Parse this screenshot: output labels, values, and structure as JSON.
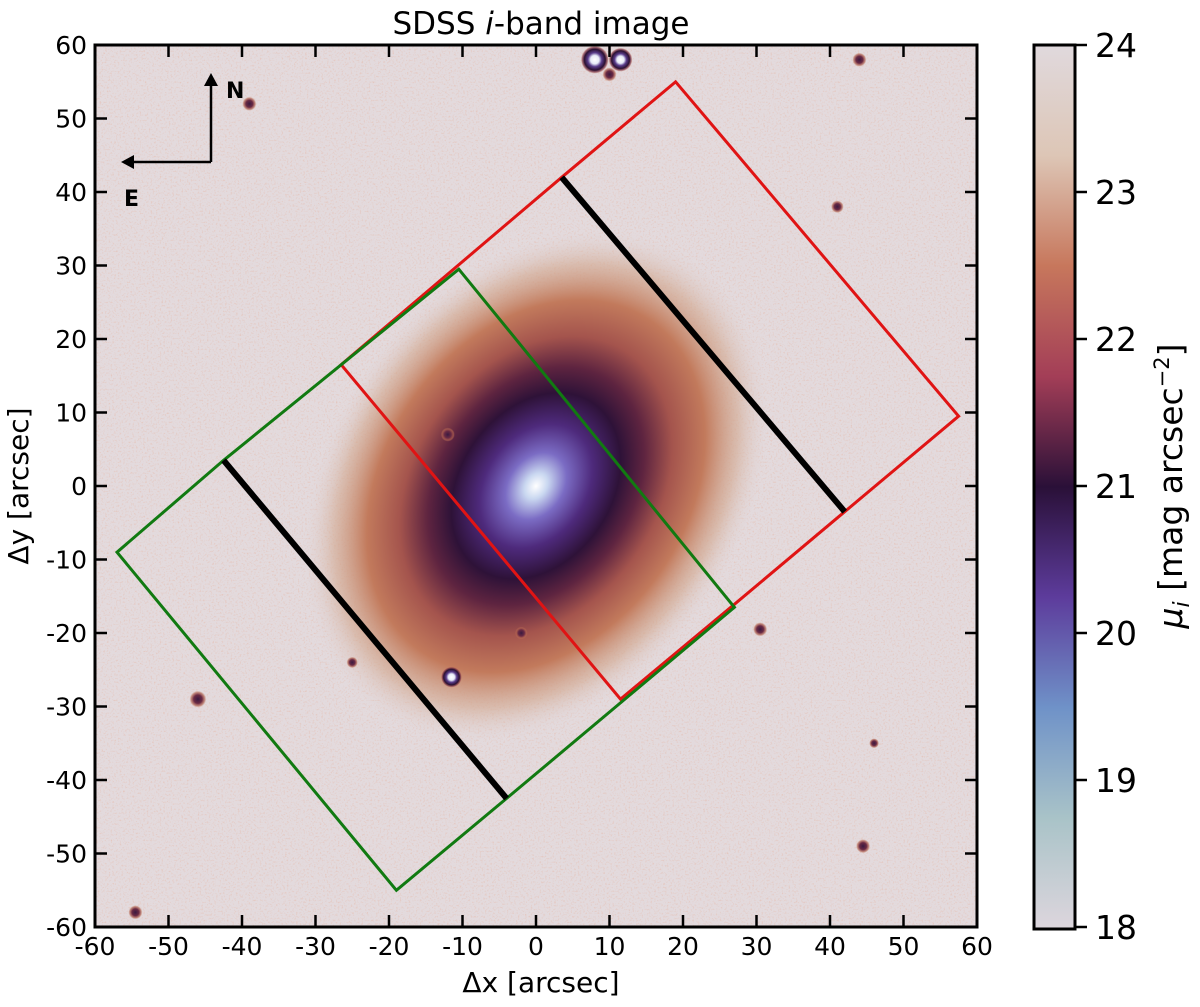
{
  "chart_data": {
    "type": "heatmap",
    "title": "SDSS i-band image",
    "title_parts": [
      "SDSS ",
      "i",
      "-band image"
    ],
    "xlabel": "Δx [arcsec]",
    "ylabel": "Δy [arcsec]",
    "xlim": [
      -60,
      60
    ],
    "ylim": [
      -60,
      60
    ],
    "xticks": [
      -60,
      -50,
      -40,
      -30,
      -20,
      -10,
      0,
      10,
      20,
      30,
      40,
      50,
      60
    ],
    "yticks": [
      -60,
      -50,
      -40,
      -30,
      -20,
      -10,
      0,
      10,
      20,
      30,
      40,
      50,
      60
    ],
    "colorbar": {
      "label_parts": [
        "μ",
        "i",
        " [mag arcsec",
        "−2",
        "]"
      ],
      "range": [
        18,
        24
      ],
      "ticks": [
        18,
        19,
        20,
        21,
        22,
        23,
        24
      ],
      "colormap": [
        "#ddd6dd",
        "#a9c3c8",
        "#6f92c8",
        "#5d3c9c",
        "#2a1038",
        "#a33e57",
        "#c7775c",
        "#ddc6b6",
        "#e0d9dd"
      ]
    },
    "background_color": "#e3dadd",
    "compass": {
      "north": "N",
      "east": "E"
    },
    "galaxy": {
      "center": [
        0,
        0
      ],
      "axis_ratio": 0.75,
      "position_angle_deg": 35
    },
    "stars": [
      {
        "x": 8,
        "y": 58,
        "size": 2.0
      },
      {
        "x": 11.5,
        "y": 58,
        "size": 1.7
      },
      {
        "x": 10,
        "y": 56,
        "size": 1.0
      },
      {
        "x": 44,
        "y": 58,
        "size": 1.0
      },
      {
        "x": -39,
        "y": 52,
        "size": 1.0
      },
      {
        "x": 41,
        "y": 38,
        "size": 0.9
      },
      {
        "x": -12,
        "y": 7,
        "size": 1.0
      },
      {
        "x": -2,
        "y": -20,
        "size": 0.9
      },
      {
        "x": 30.5,
        "y": -19.5,
        "size": 1.0
      },
      {
        "x": -11.5,
        "y": -26,
        "size": 1.5
      },
      {
        "x": -46,
        "y": -29,
        "size": 1.2
      },
      {
        "x": -25,
        "y": -24,
        "size": 0.8
      },
      {
        "x": 44.5,
        "y": -49,
        "size": 1.0
      },
      {
        "x": -54.5,
        "y": -58,
        "size": 1.0
      },
      {
        "x": 46,
        "y": -35,
        "size": 0.7
      }
    ],
    "polygons": [
      {
        "color": "#e01414",
        "width": 3,
        "points": [
          [
            -26.5,
            16.5
          ],
          [
            3.5,
            42
          ],
          [
            19,
            55
          ],
          [
            57.5,
            9.5
          ],
          [
            42,
            -3.5
          ],
          [
            26.5,
            -16.5
          ],
          [
            11.5,
            -29
          ]
        ],
        "closed": true
      },
      {
        "color": "#117a11",
        "width": 3,
        "points": [
          [
            -10.5,
            29.5
          ],
          [
            -42.5,
            3.5
          ],
          [
            -57,
            -9
          ],
          [
            -19,
            -55
          ],
          [
            -4,
            -42.5
          ],
          [
            27,
            -16.5
          ]
        ],
        "closed": true
      },
      {
        "color": "#000000",
        "width": 6,
        "points": [
          [
            3.5,
            42
          ],
          [
            42,
            -3.5
          ]
        ],
        "closed": false
      },
      {
        "color": "#000000",
        "width": 6,
        "points": [
          [
            -42.5,
            3.5
          ],
          [
            -4,
            -42.5
          ]
        ],
        "closed": false
      }
    ]
  }
}
